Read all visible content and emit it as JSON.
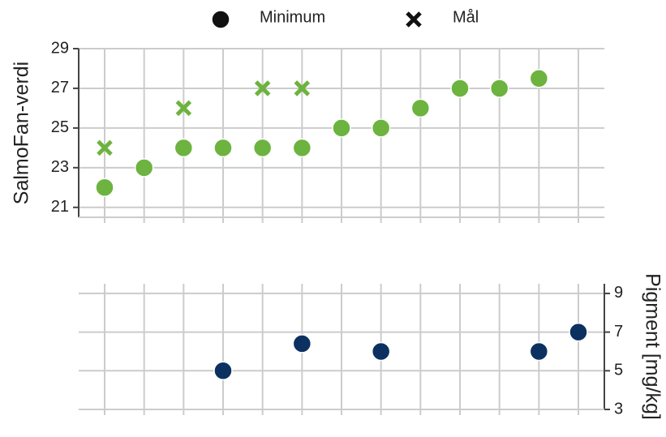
{
  "chart_data": [
    {
      "type": "scatter",
      "ylabel": "SalmoFan-verdi",
      "ylabel_color": "#6db33f",
      "categories": [
        null,
        null,
        null,
        null,
        null,
        null,
        null,
        null,
        null,
        null,
        null,
        null,
        null
      ],
      "series": [
        {
          "name": "Minimum",
          "color": "#6db33f",
          "marker": "o",
          "values": [
            22,
            23,
            24,
            24,
            24,
            24,
            25,
            25,
            26,
            27,
            27,
            27.5,
            null
          ]
        },
        {
          "name": "Mål",
          "color": "#6db33f",
          "marker": "x",
          "values": [
            24,
            null,
            26,
            null,
            27,
            27,
            null,
            null,
            null,
            null,
            null,
            null,
            null
          ]
        }
      ],
      "ylim": [
        20.5,
        29
      ],
      "yticks": [
        21,
        23,
        25,
        27,
        29
      ],
      "grid": true,
      "legend": "upper center",
      "yaxis": "left"
    },
    {
      "type": "scatter",
      "ylabel": "Pigment [mg/kg]",
      "ylabel_color": "#0c3161",
      "categories": [
        null,
        null,
        null,
        null,
        null,
        null,
        null,
        null,
        null,
        null,
        null,
        null,
        null
      ],
      "series": [
        {
          "color": "#0c3161",
          "marker": "o",
          "values": [
            null,
            null,
            null,
            5,
            null,
            6.4,
            null,
            6,
            null,
            null,
            null,
            6,
            7
          ]
        }
      ],
      "ylim": [
        3,
        9.5
      ],
      "yticks": [
        3,
        5,
        7,
        9
      ],
      "grid": true,
      "yaxis": "right"
    }
  ]
}
